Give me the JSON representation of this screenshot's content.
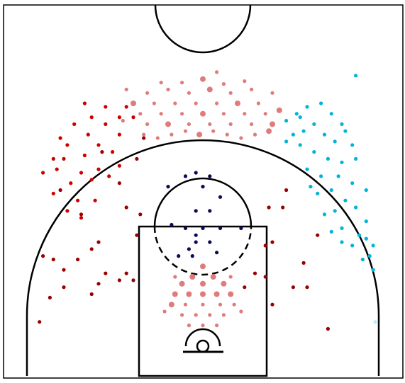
{
  "chart_data": {
    "type": "scatter",
    "title": "",
    "xlabel": "",
    "ylabel": "",
    "xlim": [
      -250,
      250
    ],
    "ylim": [
      -47.5,
      422.5
    ],
    "grid": false,
    "legend": "none",
    "colors": {
      "dark_red": "#990000",
      "red": "#cc0000",
      "salmon": "#e07b7b",
      "navy": "#0b0b55",
      "cyan": "#00b5d8",
      "pale_cyan": "#b8ecf7",
      "line": "#000000"
    },
    "series": [
      {
        "zone": "corner-and-midrange-left",
        "color": "dark_red",
        "points": [
          [
            -235,
            35
          ],
          [
            -220,
            70
          ],
          [
            -200,
            110
          ],
          [
            -215,
            125
          ],
          [
            -160,
            75
          ],
          [
            -150,
            90
          ],
          [
            -140,
            105
          ],
          [
            -120,
            95
          ],
          [
            -110,
            105
          ],
          [
            -100,
            95
          ],
          [
            -160,
            140
          ],
          [
            -150,
            150
          ],
          [
            -95,
            160
          ],
          [
            -90,
            190
          ],
          [
            -110,
            200
          ],
          [
            -120,
            235
          ],
          [
            -145,
            280
          ],
          [
            -95,
            270
          ],
          [
            -85,
            300
          ],
          [
            -230,
            130
          ],
          [
            -205,
            225
          ],
          [
            -175,
            190
          ]
        ]
      },
      {
        "zone": "wing-three-left",
        "color": "red",
        "points": [
          [
            -215,
            220
          ],
          [
            -190,
            235
          ],
          [
            -175,
            250
          ],
          [
            -160,
            240
          ],
          [
            -150,
            255
          ],
          [
            -135,
            245
          ],
          [
            -120,
            260
          ],
          [
            -170,
            275
          ],
          [
            -150,
            290
          ],
          [
            -130,
            280
          ],
          [
            -165,
            305
          ],
          [
            -140,
            320
          ],
          [
            -120,
            305
          ],
          [
            -185,
            320
          ],
          [
            -205,
            300
          ],
          [
            -200,
            270
          ],
          [
            -180,
            210
          ],
          [
            -155,
            210
          ],
          [
            -195,
            195
          ],
          [
            -175,
            185
          ],
          [
            -230,
            250
          ],
          [
            -210,
            255
          ],
          [
            -215,
            270
          ],
          [
            -195,
            290
          ],
          [
            -160,
            330
          ],
          [
            -120,
            330
          ],
          [
            -140,
            345
          ],
          [
            -170,
            350
          ],
          [
            -100,
            330
          ],
          [
            -110,
            345
          ]
        ]
      },
      {
        "zone": "top-of-key-three",
        "color": "salmon",
        "points": [
          [
            -100,
            350
          ],
          [
            -90,
            335
          ],
          [
            -80,
            320
          ],
          [
            -70,
            350
          ],
          [
            -60,
            335
          ],
          [
            -50,
            320
          ],
          [
            -40,
            350
          ],
          [
            -30,
            335
          ],
          [
            -20,
            320
          ],
          [
            -10,
            350
          ],
          [
            0,
            335
          ],
          [
            10,
            320
          ],
          [
            20,
            350
          ],
          [
            30,
            335
          ],
          [
            40,
            320
          ],
          [
            50,
            350
          ],
          [
            60,
            335
          ],
          [
            70,
            320
          ],
          [
            80,
            350
          ],
          [
            90,
            335
          ],
          [
            100,
            320
          ],
          [
            -85,
            305
          ],
          [
            -65,
            300
          ],
          [
            -45,
            305
          ],
          [
            -25,
            310
          ],
          [
            -5,
            305
          ],
          [
            15,
            310
          ],
          [
            35,
            305
          ],
          [
            55,
            300
          ],
          [
            75,
            305
          ],
          [
            95,
            310
          ],
          [
            -110,
            370
          ],
          [
            -80,
            365
          ],
          [
            -50,
            370
          ],
          [
            -20,
            365
          ],
          [
            10,
            370
          ],
          [
            40,
            365
          ],
          [
            70,
            370
          ],
          [
            100,
            365
          ],
          [
            -30,
            380
          ],
          [
            0,
            385
          ],
          [
            30,
            378
          ],
          [
            20,
            395
          ],
          [
            -60,
            380
          ],
          [
            60,
            382
          ],
          [
            110,
            340
          ],
          [
            -115,
            325
          ]
        ]
      },
      {
        "zone": "paint-floater",
        "color": "salmon",
        "points": [
          [
            0,
            115
          ],
          [
            -15,
            100
          ],
          [
            15,
            100
          ],
          [
            -30,
            90
          ],
          [
            0,
            90
          ],
          [
            30,
            90
          ],
          [
            -40,
            75
          ],
          [
            -20,
            75
          ],
          [
            0,
            75
          ],
          [
            20,
            75
          ],
          [
            40,
            75
          ],
          [
            -45,
            60
          ],
          [
            -25,
            60
          ],
          [
            0,
            60
          ],
          [
            25,
            60
          ],
          [
            45,
            60
          ],
          [
            -30,
            45
          ],
          [
            -10,
            45
          ],
          [
            10,
            45
          ],
          [
            30,
            45
          ],
          [
            -20,
            30
          ],
          [
            0,
            30
          ],
          [
            20,
            30
          ],
          [
            -55,
            50
          ],
          [
            55,
            50
          ],
          [
            -40,
            100
          ],
          [
            40,
            100
          ]
        ]
      },
      {
        "zone": "restricted-and-short-midrange",
        "color": "navy",
        "points": [
          [
            -25,
            245
          ],
          [
            -10,
            250
          ],
          [
            10,
            245
          ],
          [
            0,
            230
          ],
          [
            -50,
            230
          ],
          [
            25,
            215
          ],
          [
            -10,
            195
          ],
          [
            10,
            195
          ],
          [
            -45,
            175
          ],
          [
            -25,
            170
          ],
          [
            0,
            170
          ],
          [
            25,
            170
          ],
          [
            55,
            170
          ],
          [
            -10,
            160
          ],
          [
            10,
            150
          ],
          [
            -20,
            140
          ],
          [
            -10,
            150
          ],
          [
            20,
            135
          ],
          [
            -35,
            130
          ],
          [
            -15,
            130
          ]
        ]
      },
      {
        "zone": "wing-three-right",
        "color": "cyan",
        "points": [
          [
            120,
            325
          ],
          [
            135,
            335
          ],
          [
            150,
            345
          ],
          [
            170,
            350
          ],
          [
            185,
            335
          ],
          [
            200,
            320
          ],
          [
            130,
            305
          ],
          [
            145,
            310
          ],
          [
            160,
            320
          ],
          [
            175,
            305
          ],
          [
            190,
            295
          ],
          [
            205,
            310
          ],
          [
            215,
            290
          ],
          [
            140,
            290
          ],
          [
            160,
            280
          ],
          [
            180,
            270
          ],
          [
            200,
            265
          ],
          [
            220,
            270
          ],
          [
            150,
            255
          ],
          [
            170,
            245
          ],
          [
            195,
            245
          ],
          [
            215,
            235
          ],
          [
            235,
            225
          ],
          [
            165,
            220
          ],
          [
            185,
            225
          ],
          [
            205,
            210
          ],
          [
            220,
            200
          ],
          [
            235,
            180
          ],
          [
            190,
            195
          ],
          [
            175,
            190
          ],
          [
            200,
            170
          ],
          [
            225,
            160
          ],
          [
            235,
            155
          ],
          [
            245,
            145
          ],
          [
            240,
            130
          ],
          [
            245,
            110
          ],
          [
            230,
            125
          ],
          [
            215,
            145
          ],
          [
            200,
            150
          ],
          [
            185,
            165
          ],
          [
            220,
            390
          ],
          [
            140,
            330
          ],
          [
            120,
            295
          ],
          [
            155,
            230
          ]
        ]
      },
      {
        "zone": "right-corner",
        "color": "pale_cyan",
        "points": [
          [
            248,
            35
          ]
        ]
      },
      {
        "zone": "right-midrange",
        "color": "dark_red",
        "points": [
          [
            95,
            200
          ],
          [
            115,
            200
          ],
          [
            100,
            150
          ],
          [
            90,
            145
          ],
          [
            75,
            105
          ],
          [
            90,
            100
          ],
          [
            100,
            60
          ],
          [
            130,
            85
          ],
          [
            150,
            85
          ],
          [
            180,
            25
          ],
          [
            145,
            120
          ],
          [
            165,
            160
          ],
          [
            120,
            225
          ],
          [
            60,
            85
          ],
          [
            -180,
            125
          ],
          [
            -200,
            85
          ]
        ]
      }
    ]
  }
}
